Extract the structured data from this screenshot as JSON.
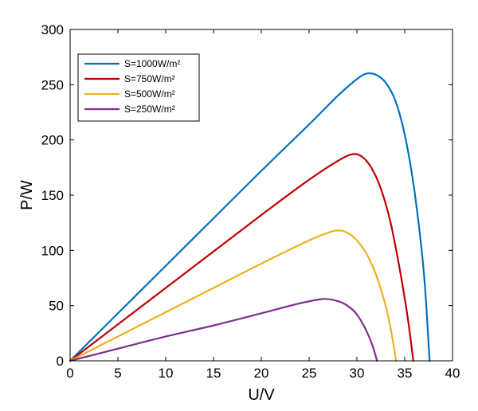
{
  "chart_data": {
    "type": "line",
    "xlabel": "U/V",
    "ylabel": "P/W",
    "xlim": [
      0,
      40
    ],
    "ylim": [
      0,
      300
    ],
    "xticks": [
      0,
      5,
      10,
      15,
      20,
      25,
      30,
      35,
      40
    ],
    "yticks": [
      0,
      50,
      100,
      150,
      200,
      250,
      300
    ],
    "grid": false,
    "legend_position": "top-left",
    "series": [
      {
        "name": "S=1000W/m²",
        "color": "#0072BD",
        "x": [
          0,
          5,
          10,
          15,
          20,
          25,
          28,
          30,
          31,
          32,
          33,
          34,
          35,
          36,
          37,
          37.6
        ],
        "y": [
          0,
          43,
          86,
          129,
          172,
          214,
          240,
          255,
          260,
          259,
          252,
          236,
          205,
          155,
          80,
          0
        ]
      },
      {
        "name": "S=750W/m²",
        "color": "#C00000",
        "x": [
          0,
          5,
          10,
          15,
          20,
          25,
          28,
          29.5,
          30.5,
          31.5,
          32.5,
          33.5,
          34.5,
          35.3,
          35.9
        ],
        "y": [
          0,
          33,
          66,
          99,
          132,
          164,
          181,
          187,
          185,
          175,
          156,
          126,
          82,
          40,
          0
        ]
      },
      {
        "name": "S=500W/m²",
        "color": "#EDB120",
        "x": [
          0,
          5,
          10,
          15,
          20,
          25,
          27,
          28,
          29,
          30,
          31,
          32,
          33,
          33.6,
          34.1
        ],
        "y": [
          0,
          22,
          44,
          66,
          88,
          109,
          116,
          118,
          116,
          109,
          97,
          78,
          50,
          26,
          0
        ]
      },
      {
        "name": "S=250W/m²",
        "color": "#7E2F8E",
        "x": [
          0,
          5,
          10,
          15,
          20,
          24,
          26.5,
          28,
          29,
          30,
          31,
          31.7,
          32.1
        ],
        "y": [
          0,
          11,
          22,
          32,
          43,
          52,
          56,
          54,
          50,
          42,
          27,
          12,
          0
        ]
      }
    ]
  }
}
